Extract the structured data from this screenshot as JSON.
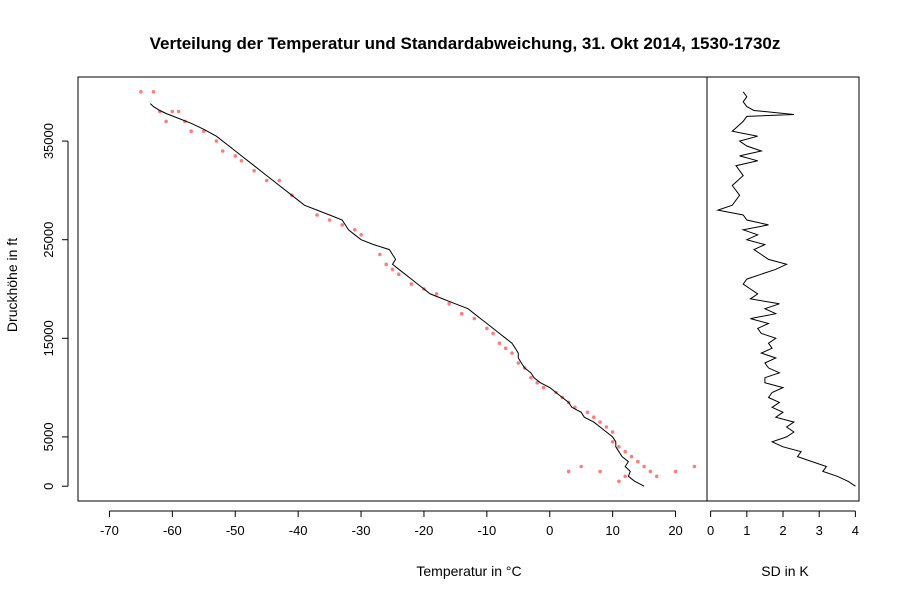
{
  "title": "Verteilung der Temperatur und Standardabweichung, 31. Okt 2014, 1530-1730z",
  "colors": {
    "points": "#ff5050",
    "line": "#000000",
    "frame": "#000000"
  },
  "chart_data": [
    {
      "type": "scatter",
      "xlabel": "Temperatur in °C",
      "ylabel": "Druckhöhe in ft",
      "xlim": [
        -75,
        25
      ],
      "ylim": [
        -1500,
        41500
      ],
      "x_ticks": [
        -70,
        -60,
        -50,
        -40,
        -30,
        -20,
        -10,
        0,
        10,
        20
      ],
      "y_ticks": [
        0,
        5000,
        15000,
        25000,
        35000
      ],
      "grid": false,
      "series": [
        {
          "kind": "mean-line",
          "points": [
            [
              15,
              0
            ],
            [
              13.5,
              500
            ],
            [
              12.5,
              1000
            ],
            [
              12.8,
              1500
            ],
            [
              12,
              2000
            ],
            [
              12.5,
              2500
            ],
            [
              11.5,
              3000
            ],
            [
              11,
              3500
            ],
            [
              10.5,
              4000
            ],
            [
              10.5,
              4500
            ],
            [
              10,
              5000
            ],
            [
              9,
              5500
            ],
            [
              8,
              6000
            ],
            [
              7,
              6500
            ],
            [
              5.5,
              7000
            ],
            [
              5,
              7500
            ],
            [
              3.5,
              8000
            ],
            [
              3,
              8500
            ],
            [
              2,
              9000
            ],
            [
              1,
              9500
            ],
            [
              0,
              10000
            ],
            [
              -1.5,
              10500
            ],
            [
              -2.5,
              11000
            ],
            [
              -3,
              11500
            ],
            [
              -4,
              12000
            ],
            [
              -4.5,
              12500
            ],
            [
              -5,
              13000
            ],
            [
              -5,
              13500
            ],
            [
              -5.5,
              14000
            ],
            [
              -6,
              14500
            ],
            [
              -7,
              15000
            ],
            [
              -8,
              15500
            ],
            [
              -9,
              16000
            ],
            [
              -10,
              16500
            ],
            [
              -11,
              17000
            ],
            [
              -12,
              17500
            ],
            [
              -13,
              18000
            ],
            [
              -15,
              18500
            ],
            [
              -17,
              19000
            ],
            [
              -19,
              19500
            ],
            [
              -20,
              20000
            ],
            [
              -21,
              20500
            ],
            [
              -22,
              21000
            ],
            [
              -23,
              21500
            ],
            [
              -24,
              22000
            ],
            [
              -25,
              22500
            ],
            [
              -24.5,
              23000
            ],
            [
              -25,
              23500
            ],
            [
              -25.5,
              24000
            ],
            [
              -28,
              24500
            ],
            [
              -30,
              25000
            ],
            [
              -31,
              25500
            ],
            [
              -32,
              26000
            ],
            [
              -32.5,
              26500
            ],
            [
              -33,
              27000
            ],
            [
              -35,
              27500
            ],
            [
              -37,
              28000
            ],
            [
              -39,
              28500
            ],
            [
              -41,
              29500
            ],
            [
              -43,
              30500
            ],
            [
              -45,
              31500
            ],
            [
              -47,
              32500
            ],
            [
              -49,
              33500
            ],
            [
              -51,
              34500
            ],
            [
              -53,
              35500
            ],
            [
              -55,
              36200
            ],
            [
              -57,
              36800
            ],
            [
              -59,
              37300
            ],
            [
              -61,
              37800
            ],
            [
              -62,
              38100
            ],
            [
              -63,
              38500
            ],
            [
              -63.5,
              38800
            ]
          ]
        },
        {
          "kind": "scatter",
          "points": [
            [
              -65,
              40000
            ],
            [
              -63,
              40000
            ],
            [
              -62,
              38000
            ],
            [
              -60,
              38000
            ],
            [
              -59,
              38000
            ],
            [
              -61,
              37000
            ],
            [
              -58,
              37000
            ],
            [
              -57,
              36000
            ],
            [
              -55,
              36000
            ],
            [
              -53,
              35000
            ],
            [
              -52,
              34000
            ],
            [
              -50,
              33500
            ],
            [
              -49,
              33000
            ],
            [
              -47,
              32000
            ],
            [
              -45,
              31000
            ],
            [
              -43,
              31000
            ],
            [
              -41,
              29500
            ],
            [
              -37,
              27500
            ],
            [
              -35,
              27000
            ],
            [
              -33,
              26500
            ],
            [
              -31,
              26000
            ],
            [
              -30,
              25500
            ],
            [
              -27,
              23500
            ],
            [
              -26,
              22500
            ],
            [
              -25,
              22000
            ],
            [
              -24,
              21500
            ],
            [
              -22,
              20500
            ],
            [
              -20,
              20000
            ],
            [
              -18,
              19500
            ],
            [
              -16,
              18500
            ],
            [
              -14,
              17500
            ],
            [
              -12,
              17000
            ],
            [
              -10,
              16000
            ],
            [
              -9,
              15500
            ],
            [
              -8,
              14500
            ],
            [
              -7,
              14000
            ],
            [
              -6,
              13500
            ],
            [
              -5,
              12500
            ],
            [
              -4,
              12000
            ],
            [
              -3,
              11000
            ],
            [
              -2,
              10500
            ],
            [
              -1,
              10000
            ],
            [
              1,
              9500
            ],
            [
              2,
              9000
            ],
            [
              3,
              8500
            ],
            [
              4,
              8000
            ],
            [
              6,
              7500
            ],
            [
              7,
              7000
            ],
            [
              8,
              6500
            ],
            [
              9,
              6000
            ],
            [
              10,
              5500
            ],
            [
              10,
              4500
            ],
            [
              11,
              4000
            ],
            [
              12,
              3500
            ],
            [
              13,
              3000
            ],
            [
              14,
              2500
            ],
            [
              15,
              2000
            ],
            [
              16,
              1500
            ],
            [
              17,
              1000
            ],
            [
              20,
              1500
            ],
            [
              23,
              2000
            ],
            [
              8,
              1500
            ],
            [
              5,
              2000
            ],
            [
              3,
              1500
            ],
            [
              11,
              500
            ],
            [
              12,
              1000
            ]
          ]
        }
      ]
    },
    {
      "type": "line",
      "xlabel": "SD in K",
      "ylabel": "",
      "xlim": [
        -0.1,
        4.1
      ],
      "ylim": [
        -1500,
        41500
      ],
      "x_ticks": [
        0,
        1,
        2,
        3,
        4
      ],
      "grid": false,
      "series": [
        {
          "points": [
            [
              4,
              0
            ],
            [
              3.8,
              500
            ],
            [
              3.5,
              1000
            ],
            [
              3.1,
              1500
            ],
            [
              3.2,
              2000
            ],
            [
              2.8,
              2500
            ],
            [
              2.4,
              3000
            ],
            [
              2.5,
              3500
            ],
            [
              2,
              4000
            ],
            [
              1.7,
              4500
            ],
            [
              2.1,
              5000
            ],
            [
              2.3,
              5500
            ],
            [
              2.1,
              6000
            ],
            [
              2.3,
              6500
            ],
            [
              1.8,
              7000
            ],
            [
              2,
              7500
            ],
            [
              1.7,
              8000
            ],
            [
              1.9,
              8500
            ],
            [
              1.6,
              9000
            ],
            [
              1.7,
              9500
            ],
            [
              2,
              10000
            ],
            [
              1.5,
              10500
            ],
            [
              1.5,
              11000
            ],
            [
              1.9,
              11500
            ],
            [
              1.6,
              12000
            ],
            [
              1.5,
              12500
            ],
            [
              1.8,
              13000
            ],
            [
              1.4,
              13500
            ],
            [
              1.7,
              14000
            ],
            [
              1.6,
              14500
            ],
            [
              1.8,
              15000
            ],
            [
              1.4,
              15500
            ],
            [
              1.3,
              16000
            ],
            [
              1.6,
              16500
            ],
            [
              1.1,
              17000
            ],
            [
              1.8,
              17500
            ],
            [
              1.5,
              18000
            ],
            [
              1.9,
              18500
            ],
            [
              1.1,
              19000
            ],
            [
              1.3,
              19500
            ],
            [
              1.1,
              20000
            ],
            [
              0.9,
              20500
            ],
            [
              1.0,
              21000
            ],
            [
              1.4,
              21500
            ],
            [
              1.8,
              22000
            ],
            [
              2.1,
              22500
            ],
            [
              1.6,
              23000
            ],
            [
              1.4,
              23500
            ],
            [
              1.2,
              24000
            ],
            [
              1.5,
              24500
            ],
            [
              1.0,
              25000
            ],
            [
              1.3,
              25500
            ],
            [
              0.9,
              26000
            ],
            [
              1.6,
              26500
            ],
            [
              1.0,
              27000
            ],
            [
              0.9,
              27500
            ],
            [
              0.2,
              28000
            ],
            [
              0.6,
              28500
            ],
            [
              0.8,
              29500
            ],
            [
              0.6,
              30500
            ],
            [
              0.9,
              31500
            ],
            [
              0.7,
              32500
            ],
            [
              1.3,
              33000
            ],
            [
              0.8,
              33500
            ],
            [
              1.4,
              34000
            ],
            [
              1.0,
              34500
            ],
            [
              0.8,
              35000
            ],
            [
              1.3,
              35500
            ],
            [
              0.6,
              36000
            ],
            [
              0.9,
              37000
            ],
            [
              1.0,
              37500
            ],
            [
              2.3,
              37700
            ],
            [
              1.2,
              38100
            ],
            [
              1.0,
              38500
            ],
            [
              0.9,
              39000
            ],
            [
              1.0,
              39500
            ],
            [
              0.9,
              40000
            ]
          ]
        }
      ]
    }
  ]
}
